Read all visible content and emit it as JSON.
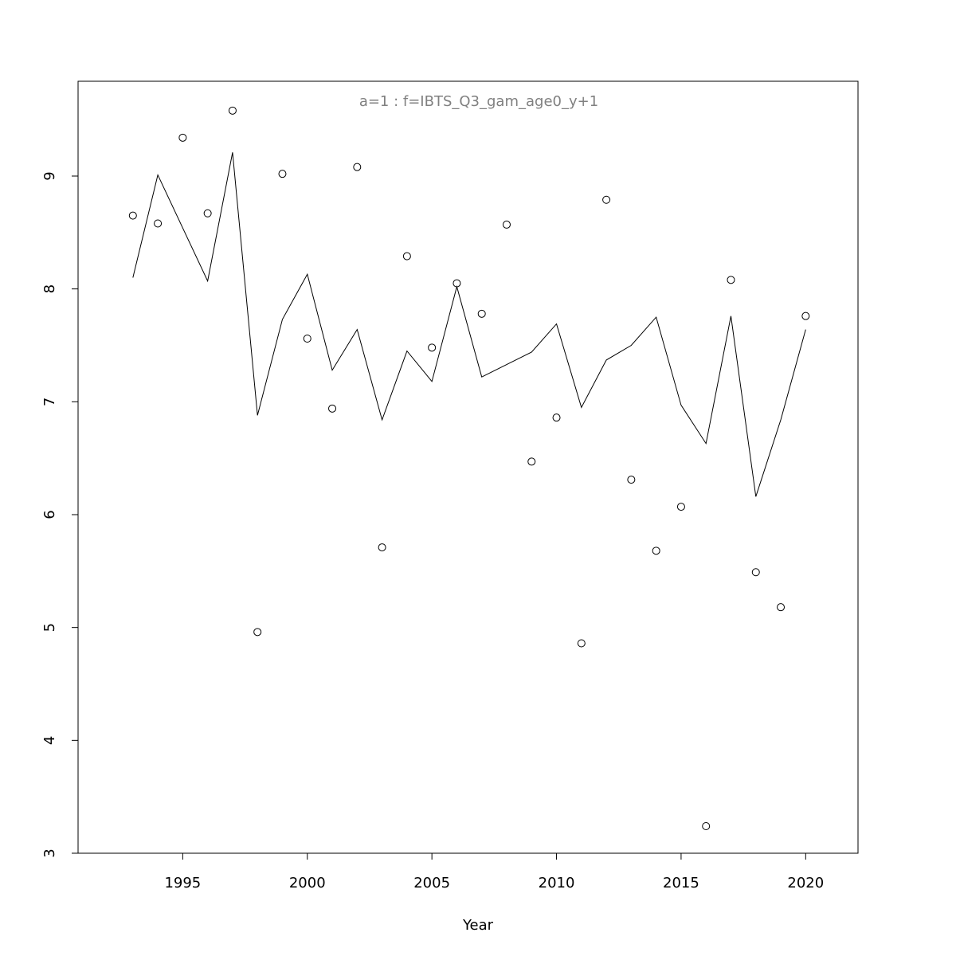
{
  "chart_data": {
    "type": "scatter",
    "title": "a=1  :  f=IBTS_Q3_gam_age0_y+1",
    "title_color": "#808080",
    "x_label": "Year",
    "x": [
      1993,
      1994,
      1995,
      1996,
      1997,
      1998,
      1999,
      2000,
      2001,
      2002,
      2003,
      2004,
      2005,
      2006,
      2007,
      2008,
      2009,
      2010,
      2011,
      2012,
      2013,
      2014,
      2015,
      2016,
      2017,
      2018,
      2019,
      2020
    ],
    "series": [
      {
        "style": "points",
        "color": "#000000",
        "values": [
          8.65,
          8.58,
          9.34,
          8.67,
          9.58,
          4.96,
          9.02,
          7.56,
          6.94,
          9.08,
          5.71,
          8.29,
          7.48,
          8.05,
          7.78,
          8.57,
          6.47,
          6.86,
          4.86,
          8.79,
          6.31,
          5.68,
          6.07,
          3.24,
          8.08,
          5.49,
          5.18,
          7.76
        ]
      },
      {
        "style": "line",
        "color": "#000000",
        "values": [
          8.1,
          9.01,
          8.54,
          8.07,
          9.21,
          6.88,
          7.73,
          8.13,
          7.28,
          7.64,
          6.84,
          7.45,
          7.18,
          8.02,
          7.22,
          7.33,
          7.44,
          7.69,
          6.95,
          7.37,
          7.5,
          7.75,
          6.97,
          6.63,
          7.76,
          6.16,
          6.84,
          7.64
        ]
      }
    ],
    "xlim": [
      1990.8,
      2022.1
    ],
    "ylim": [
      3,
      9.84
    ],
    "xticks": [
      1995,
      2000,
      2005,
      2010,
      2015,
      2020
    ],
    "yticks": [
      3,
      4,
      5,
      6,
      7,
      8,
      9
    ]
  }
}
